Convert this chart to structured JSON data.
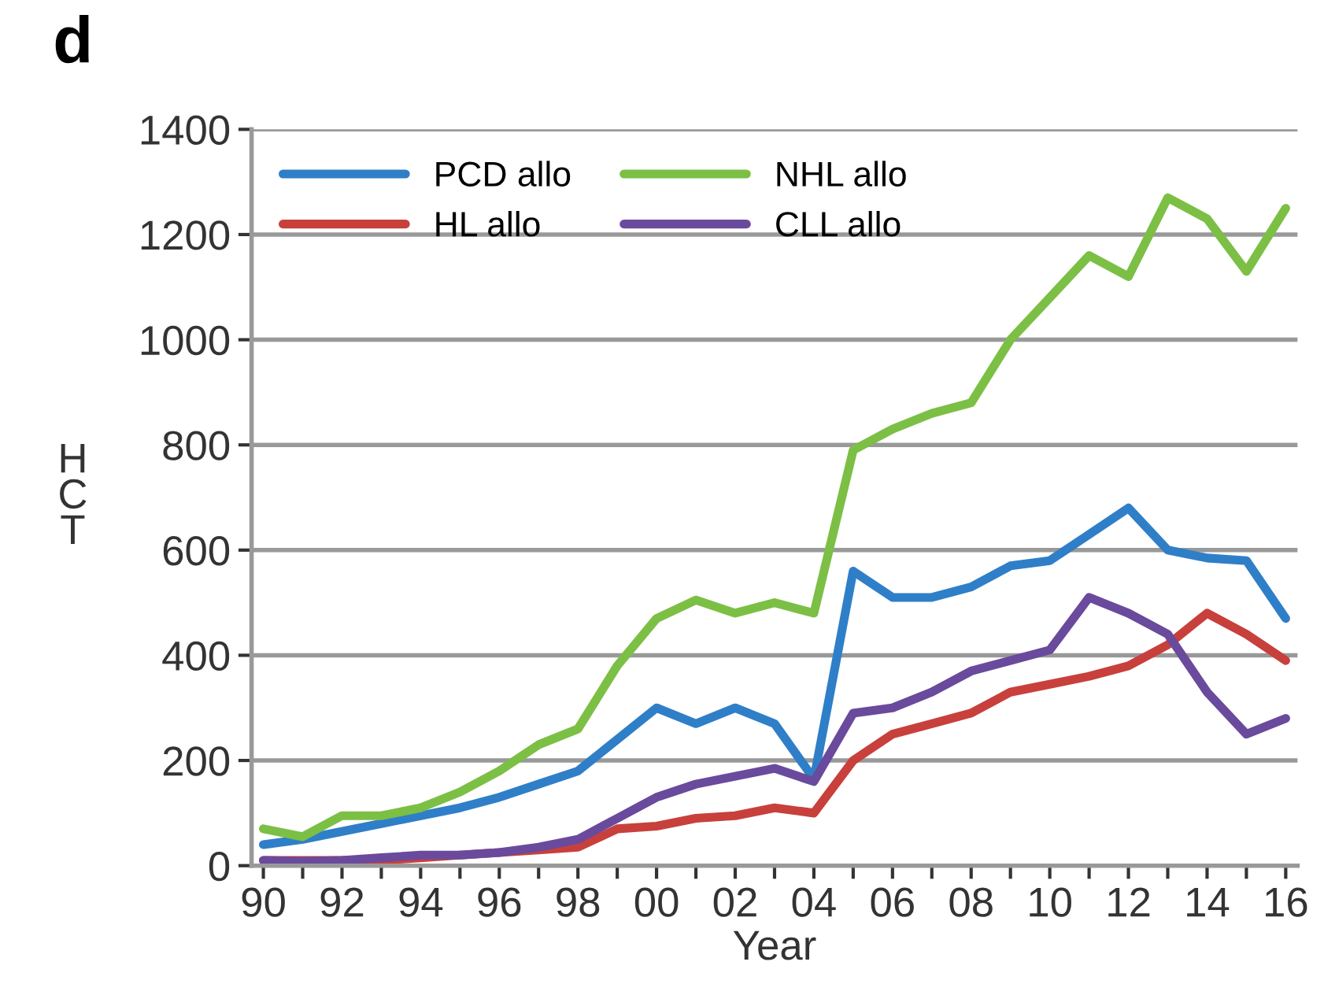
{
  "chart_data": {
    "type": "line",
    "title": "d",
    "xlabel": "Year",
    "ylabel": "H\nC\nT",
    "x": [
      1990,
      1991,
      1992,
      1993,
      1994,
      1995,
      1996,
      1997,
      1998,
      1999,
      2000,
      2001,
      2002,
      2003,
      2004,
      2005,
      2006,
      2007,
      2008,
      2009,
      2010,
      2011,
      2012,
      2013,
      2014,
      2015,
      2016
    ],
    "series": [
      {
        "name": "PCD allo",
        "color": "#2f7fc8",
        "values": [
          40,
          50,
          65,
          80,
          95,
          110,
          130,
          155,
          180,
          240,
          300,
          270,
          300,
          270,
          165,
          560,
          510,
          510,
          530,
          570,
          580,
          630,
          680,
          600,
          585,
          580,
          470
        ]
      },
      {
        "name": "HL allo",
        "color": "#c8403c",
        "values": [
          10,
          10,
          10,
          10,
          15,
          20,
          25,
          30,
          35,
          70,
          75,
          90,
          95,
          110,
          100,
          200,
          250,
          270,
          290,
          330,
          345,
          360,
          380,
          420,
          480,
          440,
          390
        ]
      },
      {
        "name": "NHL allo",
        "color": "#7cbf45",
        "values": [
          70,
          55,
          95,
          95,
          110,
          140,
          180,
          230,
          260,
          380,
          470,
          505,
          480,
          500,
          480,
          790,
          830,
          860,
          880,
          1000,
          1080,
          1160,
          1120,
          1270,
          1230,
          1130,
          1250
        ]
      },
      {
        "name": "CLL allo",
        "color": "#6a4a9c",
        "values": [
          10,
          8,
          10,
          15,
          20,
          20,
          25,
          35,
          50,
          90,
          130,
          155,
          170,
          185,
          160,
          290,
          300,
          330,
          370,
          390,
          410,
          510,
          480,
          440,
          330,
          250,
          280
        ]
      }
    ],
    "xlim": [
      1989.7,
      2016.3
    ],
    "xticks": [
      {
        "value": 1990,
        "label": "90"
      },
      {
        "value": 1991,
        "label": null
      },
      {
        "value": 1992,
        "label": "92"
      },
      {
        "value": 1993,
        "label": null
      },
      {
        "value": 1994,
        "label": "94"
      },
      {
        "value": 1995,
        "label": null
      },
      {
        "value": 1996,
        "label": "96"
      },
      {
        "value": 1997,
        "label": null
      },
      {
        "value": 1998,
        "label": "98"
      },
      {
        "value": 1999,
        "label": null
      },
      {
        "value": 2000,
        "label": "00"
      },
      {
        "value": 2001,
        "label": null
      },
      {
        "value": 2002,
        "label": "02"
      },
      {
        "value": 2003,
        "label": null
      },
      {
        "value": 2004,
        "label": "04"
      },
      {
        "value": 2005,
        "label": null
      },
      {
        "value": 2006,
        "label": "06"
      },
      {
        "value": 2007,
        "label": null
      },
      {
        "value": 2008,
        "label": "08"
      },
      {
        "value": 2009,
        "label": null
      },
      {
        "value": 2010,
        "label": "10"
      },
      {
        "value": 2011,
        "label": null
      },
      {
        "value": 2012,
        "label": "12"
      },
      {
        "value": 2013,
        "label": null
      },
      {
        "value": 2014,
        "label": "14"
      },
      {
        "value": 2015,
        "label": null
      },
      {
        "value": 2016,
        "label": "16"
      }
    ],
    "ylim": [
      0,
      1400
    ],
    "yticks": [
      0,
      200,
      400,
      600,
      800,
      1000,
      1200,
      1400
    ],
    "grid": "y",
    "legend": "top left",
    "line_style": "solid",
    "marker": "none"
  }
}
